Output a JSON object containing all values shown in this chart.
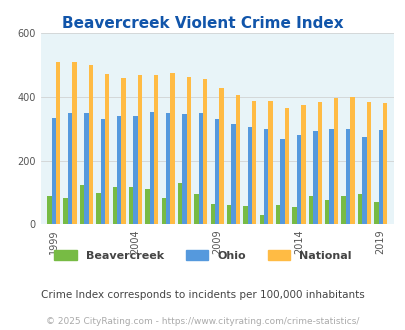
{
  "title": "Beavercreek Violent Crime Index",
  "subtitle": "Crime Index corresponds to incidents per 100,000 inhabitants",
  "footer": "© 2025 CityRating.com - https://www.cityrating.com/crime-statistics/",
  "years": [
    1999,
    2000,
    2001,
    2002,
    2003,
    2004,
    2005,
    2006,
    2007,
    2008,
    2009,
    2010,
    2011,
    2012,
    2013,
    2014,
    2015,
    2016,
    2017,
    2018,
    2019
  ],
  "beavercreek": [
    90,
    82,
    125,
    100,
    118,
    118,
    110,
    82,
    130,
    95,
    65,
    60,
    57,
    28,
    60,
    55,
    90,
    75,
    88,
    95,
    70
  ],
  "ohio": [
    335,
    350,
    350,
    330,
    340,
    340,
    352,
    350,
    345,
    350,
    330,
    315,
    305,
    300,
    268,
    280,
    292,
    300,
    300,
    275,
    295
  ],
  "national": [
    510,
    508,
    500,
    470,
    460,
    469,
    469,
    475,
    463,
    455,
    428,
    405,
    387,
    388,
    365,
    374,
    383,
    397,
    398,
    383,
    379
  ],
  "beavercreek_color": "#77bb44",
  "ohio_color": "#5599dd",
  "national_color": "#ffbb44",
  "bg_color": "#e8f4f8",
  "title_color": "#1155aa",
  "subtitle_color": "#444444",
  "footer_color": "#aaaaaa",
  "ylim": [
    0,
    600
  ],
  "yticks": [
    0,
    200,
    400,
    600
  ],
  "bar_width": 0.8,
  "figsize": [
    4.06,
    3.3
  ],
  "dpi": 100,
  "label_years": [
    1999,
    2004,
    2009,
    2014,
    2019
  ]
}
